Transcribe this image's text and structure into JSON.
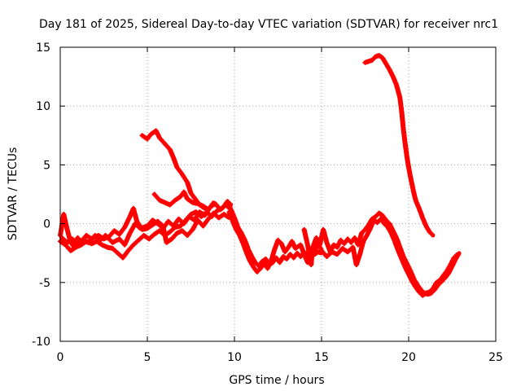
{
  "chart_data": {
    "type": "scatter",
    "title": "Day 181 of 2025, Sidereal Day-to-day VTEC variation (SDTVAR) for receiver nrc1",
    "xlabel": "GPS time / hours",
    "ylabel": "SDTVAR / TECUs",
    "xlim": [
      0,
      25
    ],
    "ylim": [
      -10,
      15
    ],
    "xticks": [
      0,
      5,
      10,
      15,
      20,
      25
    ],
    "yticks": [
      -10,
      -5,
      0,
      5,
      10,
      15
    ],
    "grid": true,
    "marker": "+",
    "color": "#ff0000",
    "series": [
      {
        "name": "track-1",
        "points": [
          [
            0.0,
            -1.0
          ],
          [
            0.2,
            0.8
          ],
          [
            0.4,
            -0.5
          ],
          [
            0.6,
            -1.6
          ],
          [
            0.8,
            -2.0
          ],
          [
            1.0,
            -1.2
          ],
          [
            1.2,
            -1.5
          ],
          [
            1.5,
            -1.0
          ],
          [
            1.8,
            -1.3
          ],
          [
            2.0,
            -1.0
          ],
          [
            2.3,
            -1.4
          ],
          [
            2.6,
            -1.0
          ],
          [
            3.0,
            -1.6
          ],
          [
            3.4,
            -1.3
          ],
          [
            3.7,
            -1.8
          ],
          [
            4.0,
            -0.8
          ],
          [
            4.3,
            0.0
          ],
          [
            4.6,
            -0.4
          ],
          [
            5.0,
            -0.2
          ],
          [
            5.3,
            0.3
          ],
          [
            5.6,
            0.0
          ],
          [
            5.9,
            -0.4
          ],
          [
            6.2,
            0.2
          ],
          [
            6.5,
            -0.2
          ],
          [
            6.8,
            0.4
          ],
          [
            7.1,
            0.0
          ],
          [
            7.4,
            0.6
          ],
          [
            7.7,
            0.3
          ],
          [
            8.0,
            1.0
          ],
          [
            8.3,
            0.7
          ],
          [
            8.6,
            1.4
          ],
          [
            8.9,
            1.7
          ],
          [
            9.2,
            1.2
          ],
          [
            9.5,
            1.6
          ],
          [
            9.8,
            1.2
          ]
        ]
      },
      {
        "name": "track-2",
        "points": [
          [
            0.0,
            -1.5
          ],
          [
            0.3,
            -1.8
          ],
          [
            0.6,
            -2.3
          ],
          [
            0.9,
            -2.0
          ],
          [
            1.2,
            -1.8
          ],
          [
            1.5,
            -1.5
          ],
          [
            1.8,
            -1.7
          ],
          [
            2.1,
            -1.5
          ],
          [
            2.4,
            -1.8
          ],
          [
            2.7,
            -2.0
          ],
          [
            3.0,
            -2.1
          ],
          [
            3.3,
            -2.5
          ],
          [
            3.6,
            -2.9
          ],
          [
            3.9,
            -2.3
          ],
          [
            4.2,
            -1.8
          ],
          [
            4.5,
            -1.4
          ],
          [
            4.8,
            -1.0
          ],
          [
            5.1,
            -1.3
          ],
          [
            5.4,
            -0.9
          ],
          [
            5.7,
            -0.6
          ],
          [
            6.0,
            -1.0
          ],
          [
            6.3,
            -0.7
          ],
          [
            6.6,
            -0.3
          ],
          [
            6.9,
            -0.2
          ],
          [
            7.2,
            0.3
          ],
          [
            7.5,
            0.8
          ],
          [
            7.8,
            1.0
          ],
          [
            8.1,
            0.6
          ],
          [
            8.4,
            1.0
          ],
          [
            8.7,
            0.6
          ],
          [
            9.0,
            1.1
          ],
          [
            9.3,
            1.3
          ],
          [
            9.6,
            1.9
          ],
          [
            9.8,
            1.6
          ]
        ]
      },
      {
        "name": "track-3",
        "points": [
          [
            0.1,
            -1.2
          ],
          [
            0.4,
            -1.6
          ],
          [
            0.7,
            -1.3
          ],
          [
            1.0,
            -1.8
          ],
          [
            1.3,
            -1.4
          ],
          [
            1.6,
            -1.6
          ],
          [
            1.9,
            -1.2
          ],
          [
            2.2,
            -1.0
          ],
          [
            2.5,
            -1.3
          ],
          [
            2.8,
            -1.1
          ],
          [
            3.1,
            -0.6
          ],
          [
            3.4,
            -0.9
          ],
          [
            3.7,
            -0.3
          ],
          [
            4.0,
            0.6
          ],
          [
            4.2,
            1.3
          ],
          [
            4.4,
            0.2
          ],
          [
            4.7,
            -0.5
          ],
          [
            5.0,
            -0.4
          ],
          [
            5.3,
            -0.1
          ],
          [
            5.6,
            0.2
          ],
          [
            5.9,
            -0.2
          ],
          [
            6.1,
            -1.6
          ],
          [
            6.4,
            -1.3
          ],
          [
            6.7,
            -0.8
          ],
          [
            7.0,
            -0.6
          ],
          [
            7.3,
            -1.0
          ],
          [
            7.6,
            -0.5
          ],
          [
            7.9,
            0.3
          ],
          [
            8.2,
            -0.2
          ],
          [
            8.5,
            0.4
          ],
          [
            8.8,
            0.9
          ],
          [
            9.1,
            0.5
          ],
          [
            9.4,
            0.8
          ],
          [
            9.7,
            0.5
          ]
        ]
      },
      {
        "name": "track-4",
        "points": [
          [
            4.7,
            7.5
          ],
          [
            5.0,
            7.2
          ],
          [
            5.2,
            7.6
          ],
          [
            5.5,
            7.9
          ],
          [
            5.7,
            7.3
          ],
          [
            6.0,
            6.8
          ],
          [
            6.3,
            6.3
          ],
          [
            6.5,
            5.6
          ],
          [
            6.7,
            4.8
          ],
          [
            7.0,
            4.2
          ],
          [
            7.3,
            3.5
          ],
          [
            7.5,
            2.6
          ],
          [
            7.7,
            2.2
          ],
          [
            8.0,
            1.6
          ],
          [
            8.3,
            1.3
          ]
        ]
      },
      {
        "name": "track-5",
        "points": [
          [
            5.4,
            2.5
          ],
          [
            5.7,
            2.0
          ],
          [
            6.0,
            1.8
          ],
          [
            6.3,
            1.6
          ],
          [
            6.6,
            2.0
          ],
          [
            6.9,
            2.3
          ],
          [
            7.1,
            2.7
          ],
          [
            7.3,
            2.1
          ],
          [
            7.6,
            1.8
          ],
          [
            7.9,
            1.7
          ],
          [
            8.2,
            1.5
          ],
          [
            8.5,
            1.2
          ],
          [
            8.8,
            1.8
          ]
        ]
      },
      {
        "name": "track-6",
        "points": [
          [
            9.6,
            1.8
          ],
          [
            9.8,
            1.2
          ],
          [
            10.0,
            0.5
          ],
          [
            10.2,
            -0.3
          ],
          [
            10.4,
            -0.8
          ],
          [
            10.6,
            -1.4
          ],
          [
            10.8,
            -2.2
          ],
          [
            11.0,
            -2.8
          ],
          [
            11.2,
            -3.3
          ],
          [
            11.4,
            -3.6
          ],
          [
            11.6,
            -3.2
          ],
          [
            11.8,
            -3.0
          ],
          [
            12.0,
            -3.5
          ],
          [
            12.2,
            -3.3
          ],
          [
            12.4,
            -2.9
          ],
          [
            12.6,
            -3.3
          ],
          [
            12.8,
            -2.8
          ],
          [
            13.0,
            -3.0
          ],
          [
            13.2,
            -2.6
          ],
          [
            13.4,
            -2.9
          ],
          [
            13.6,
            -2.5
          ],
          [
            13.8,
            -2.8
          ],
          [
            14.0,
            -2.4
          ],
          [
            14.2,
            -2.8
          ],
          [
            14.4,
            -2.5
          ],
          [
            14.6,
            -2.6
          ],
          [
            14.8,
            -2.4
          ],
          [
            15.0,
            -2.5
          ]
        ]
      },
      {
        "name": "track-7",
        "points": [
          [
            9.7,
            1.0
          ],
          [
            9.9,
            0.2
          ],
          [
            10.1,
            -0.5
          ],
          [
            10.3,
            -1.0
          ],
          [
            10.5,
            -1.7
          ],
          [
            10.7,
            -2.5
          ],
          [
            10.9,
            -3.2
          ],
          [
            11.1,
            -3.7
          ],
          [
            11.3,
            -4.1
          ],
          [
            11.5,
            -3.8
          ],
          [
            11.7,
            -3.4
          ],
          [
            11.9,
            -3.8
          ],
          [
            12.1,
            -3.2
          ],
          [
            12.3,
            -2.2
          ],
          [
            12.5,
            -1.4
          ],
          [
            12.7,
            -1.7
          ],
          [
            12.9,
            -2.4
          ],
          [
            13.1,
            -2.0
          ],
          [
            13.3,
            -1.5
          ],
          [
            13.5,
            -2.1
          ],
          [
            13.8,
            -1.8
          ],
          [
            14.0,
            -2.6
          ],
          [
            14.2,
            -3.3
          ],
          [
            14.4,
            -2.9
          ],
          [
            14.6,
            -2.3
          ],
          [
            14.8,
            -1.8
          ],
          [
            15.0,
            -2.2
          ]
        ]
      },
      {
        "name": "track-8",
        "points": [
          [
            14.0,
            -0.5
          ],
          [
            14.2,
            -1.8
          ],
          [
            14.4,
            -3.5
          ],
          [
            14.5,
            -2.0
          ],
          [
            14.7,
            -1.2
          ],
          [
            14.9,
            -1.8
          ],
          [
            15.1,
            -0.5
          ],
          [
            15.3,
            -1.6
          ],
          [
            15.5,
            -2.4
          ],
          [
            15.7,
            -1.8
          ],
          [
            15.9,
            -2.0
          ],
          [
            16.1,
            -1.4
          ],
          [
            16.3,
            -1.7
          ],
          [
            16.5,
            -1.3
          ],
          [
            16.7,
            -1.6
          ],
          [
            16.9,
            -1.2
          ],
          [
            17.1,
            -1.8
          ],
          [
            17.3,
            -0.8
          ],
          [
            17.5,
            -0.5
          ],
          [
            17.7,
            -0.1
          ],
          [
            17.9,
            0.4
          ],
          [
            18.1,
            0.6
          ],
          [
            18.3,
            0.9
          ],
          [
            18.5,
            0.7
          ],
          [
            18.7,
            0.3
          ],
          [
            18.9,
            0.0
          ],
          [
            19.1,
            -0.6
          ],
          [
            19.3,
            -1.2
          ],
          [
            19.5,
            -2.0
          ],
          [
            19.7,
            -2.8
          ],
          [
            19.9,
            -3.4
          ],
          [
            20.1,
            -4.0
          ],
          [
            20.3,
            -4.7
          ],
          [
            20.5,
            -5.2
          ],
          [
            20.7,
            -5.6
          ],
          [
            20.9,
            -5.9
          ],
          [
            21.1,
            -6.0
          ],
          [
            21.3,
            -5.9
          ],
          [
            21.5,
            -5.6
          ],
          [
            21.7,
            -5.2
          ],
          [
            21.9,
            -4.9
          ],
          [
            22.1,
            -4.6
          ],
          [
            22.3,
            -4.2
          ],
          [
            22.5,
            -3.6
          ],
          [
            22.7,
            -3.0
          ],
          [
            22.9,
            -2.5
          ]
        ]
      },
      {
        "name": "track-9",
        "points": [
          [
            15.0,
            -2.3
          ],
          [
            15.3,
            -2.8
          ],
          [
            15.6,
            -2.4
          ],
          [
            15.9,
            -2.6
          ],
          [
            16.2,
            -2.1
          ],
          [
            16.5,
            -2.4
          ],
          [
            16.8,
            -2.0
          ],
          [
            17.0,
            -3.5
          ],
          [
            17.2,
            -2.6
          ],
          [
            17.4,
            -1.5
          ],
          [
            17.6,
            -1.0
          ],
          [
            17.8,
            -0.4
          ],
          [
            18.0,
            0.3
          ],
          [
            18.2,
            0.1
          ],
          [
            18.4,
            0.4
          ],
          [
            18.6,
            0.0
          ],
          [
            18.8,
            -0.3
          ],
          [
            19.0,
            -0.8
          ],
          [
            19.2,
            -1.5
          ],
          [
            19.4,
            -2.3
          ],
          [
            19.6,
            -3.0
          ],
          [
            19.8,
            -3.7
          ],
          [
            20.0,
            -4.3
          ],
          [
            20.2,
            -4.9
          ],
          [
            20.4,
            -5.4
          ],
          [
            20.6,
            -5.8
          ],
          [
            20.8,
            -6.1
          ],
          [
            21.0,
            -5.9
          ],
          [
            21.2,
            -5.8
          ],
          [
            21.4,
            -5.5
          ],
          [
            21.6,
            -5.0
          ],
          [
            21.8,
            -4.8
          ],
          [
            22.0,
            -4.4
          ],
          [
            22.2,
            -4.0
          ],
          [
            22.4,
            -3.5
          ],
          [
            22.6,
            -2.9
          ],
          [
            22.8,
            -2.6
          ]
        ]
      },
      {
        "name": "track-10",
        "points": [
          [
            17.5,
            13.7
          ],
          [
            17.7,
            13.8
          ],
          [
            17.9,
            13.9
          ],
          [
            18.1,
            14.2
          ],
          [
            18.3,
            14.3
          ],
          [
            18.5,
            14.1
          ],
          [
            18.7,
            13.6
          ],
          [
            18.9,
            13.1
          ],
          [
            19.1,
            12.5
          ],
          [
            19.3,
            11.8
          ],
          [
            19.5,
            10.7
          ],
          [
            19.6,
            9.5
          ],
          [
            19.7,
            8.0
          ],
          [
            19.8,
            6.8
          ],
          [
            19.9,
            5.7
          ],
          [
            20.0,
            4.8
          ],
          [
            20.1,
            4.0
          ],
          [
            20.2,
            3.3
          ],
          [
            20.3,
            2.6
          ],
          [
            20.4,
            2.0
          ],
          [
            20.6,
            1.3
          ],
          [
            20.8,
            0.5
          ],
          [
            21.0,
            -0.2
          ],
          [
            21.2,
            -0.7
          ],
          [
            21.4,
            -1.0
          ]
        ]
      }
    ]
  }
}
